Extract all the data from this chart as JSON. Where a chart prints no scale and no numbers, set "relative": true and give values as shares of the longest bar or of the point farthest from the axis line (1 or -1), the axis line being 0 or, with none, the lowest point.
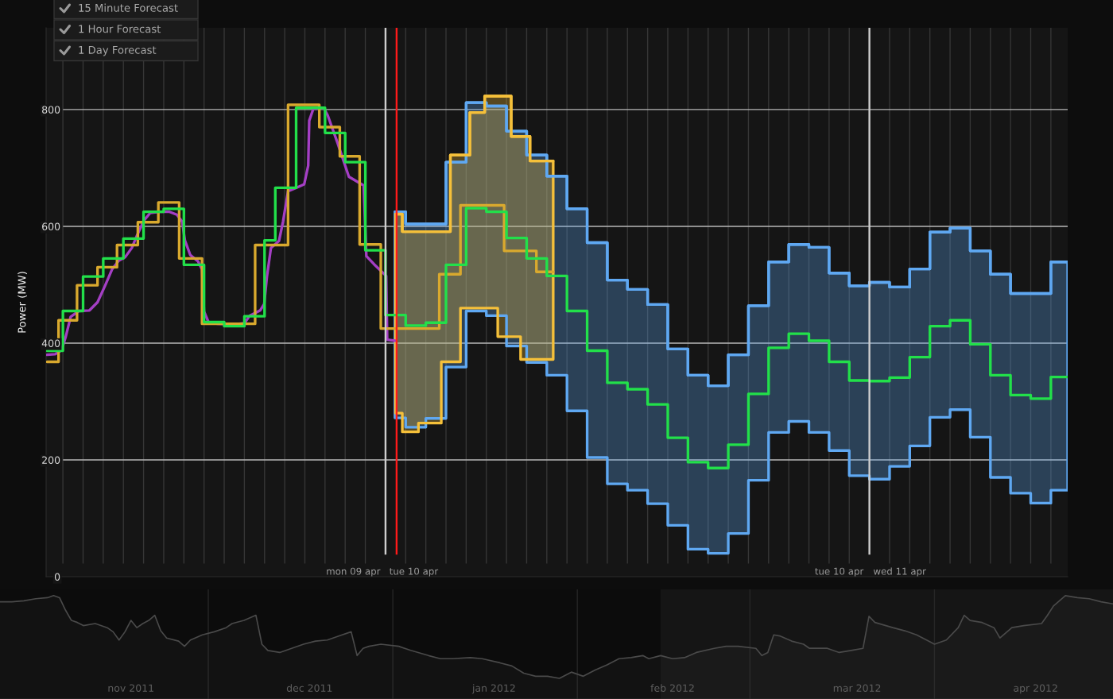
{
  "chart_data": [
    {
      "type": "step",
      "ylabel": "Power (MW)",
      "annotations": [
        "15 Minute Forecast",
        "1 Hour Forecast",
        "1 Day Forecast"
      ],
      "xlim": [
        "2012-04-09T07:10",
        "2012-04-11T09:50"
      ],
      "ylim": [
        0,
        940
      ],
      "yticks": [
        0,
        200,
        400,
        600,
        800
      ],
      "xticks": [
        {
          "value": "2012-04-09T22:24",
          "label": "mon 09 apr"
        },
        {
          "value": "2012-04-10T01:24",
          "label": "tue 10 apr"
        },
        {
          "value": "2012-04-10T22:30",
          "label": "tue 10 apr"
        },
        {
          "value": "2012-04-11T01:30",
          "label": "wed 11 apr"
        },
        {
          "value": "2012-04-09T08:00",
          "label": null
        },
        {
          "value": "2012-04-09T09:00",
          "label": null
        },
        {
          "value": "2012-04-09T10:00",
          "label": null
        },
        {
          "value": "2012-04-09T11:00",
          "label": null
        },
        {
          "value": "2012-04-09T12:00",
          "label": null
        },
        {
          "value": "2012-04-09T13:00",
          "label": null
        },
        {
          "value": "2012-04-09T14:00",
          "label": null
        },
        {
          "value": "2012-04-09T15:00",
          "label": null
        },
        {
          "value": "2012-04-09T16:00",
          "label": null
        },
        {
          "value": "2012-04-09T17:00",
          "label": null
        },
        {
          "value": "2012-04-09T18:00",
          "label": null
        },
        {
          "value": "2012-04-09T19:00",
          "label": null
        },
        {
          "value": "2012-04-09T20:00",
          "label": null
        },
        {
          "value": "2012-04-09T21:00",
          "label": null
        },
        {
          "value": "2012-04-09T22:00",
          "label": null
        },
        {
          "value": "2012-04-09T23:00",
          "label": null
        },
        {
          "value": "2012-04-10T01:00",
          "label": null
        },
        {
          "value": "2012-04-10T02:00",
          "label": null
        },
        {
          "value": "2012-04-10T03:00",
          "label": null
        },
        {
          "value": "2012-04-10T04:00",
          "label": null
        },
        {
          "value": "2012-04-10T05:00",
          "label": null
        },
        {
          "value": "2012-04-10T06:00",
          "label": null
        },
        {
          "value": "2012-04-10T07:00",
          "label": null
        },
        {
          "value": "2012-04-10T08:00",
          "label": null
        },
        {
          "value": "2012-04-10T09:00",
          "label": null
        },
        {
          "value": "2012-04-10T10:00",
          "label": null
        },
        {
          "value": "2012-04-10T11:00",
          "label": null
        },
        {
          "value": "2012-04-10T12:00",
          "label": null
        },
        {
          "value": "2012-04-10T13:00",
          "label": null
        },
        {
          "value": "2012-04-10T14:00",
          "label": null
        },
        {
          "value": "2012-04-10T15:00",
          "label": null
        },
        {
          "value": "2012-04-10T16:00",
          "label": null
        },
        {
          "value": "2012-04-10T17:00",
          "label": null
        },
        {
          "value": "2012-04-10T18:00",
          "label": null
        },
        {
          "value": "2012-04-10T19:00",
          "label": null
        },
        {
          "value": "2012-04-10T20:00",
          "label": null
        },
        {
          "value": "2012-04-10T21:00",
          "label": null
        },
        {
          "value": "2012-04-10T22:00",
          "label": null
        },
        {
          "value": "2012-04-10T23:00",
          "label": null
        },
        {
          "value": "2012-04-11T01:00",
          "label": null
        },
        {
          "value": "2012-04-11T02:00",
          "label": null
        },
        {
          "value": "2012-04-11T03:00",
          "label": null
        },
        {
          "value": "2012-04-11T04:00",
          "label": null
        },
        {
          "value": "2012-04-11T05:00",
          "label": null
        },
        {
          "value": "2012-04-11T06:00",
          "label": null
        },
        {
          "value": "2012-04-11T07:00",
          "label": null
        },
        {
          "value": "2012-04-11T08:00",
          "label": null
        },
        {
          "value": "2012-04-11T09:00",
          "label": null
        }
      ],
      "grid": true,
      "ref_lines": [
        {
          "axis": "x",
          "value": "2012-04-10T00:00",
          "color": "#cfcfcf"
        },
        {
          "axis": "x",
          "value": "2012-04-11T00:00",
          "color": "#cfcfcf"
        },
        {
          "axis": "x",
          "value": "2012-04-10T00:33",
          "color": "#ff1a1a"
        }
      ],
      "series": [
        {
          "type": "step",
          "color": "#5fa8f2",
          "x": [
            "2012-04-10T00:28",
            "2012-04-10T01:00",
            "2012-04-10T02:00",
            "2012-04-10T03:00",
            "2012-04-10T04:00",
            "2012-04-10T05:00",
            "2012-04-10T06:00",
            "2012-04-10T07:00",
            "2012-04-10T08:00",
            "2012-04-10T09:00",
            "2012-04-10T10:00",
            "2012-04-10T11:00",
            "2012-04-10T12:00",
            "2012-04-10T13:00",
            "2012-04-10T14:00",
            "2012-04-10T15:00",
            "2012-04-10T16:00",
            "2012-04-10T17:00",
            "2012-04-10T18:00",
            "2012-04-10T19:00",
            "2012-04-10T20:00",
            "2012-04-10T21:00",
            "2012-04-10T22:00",
            "2012-04-10T23:00",
            "2012-04-11T00:00",
            "2012-04-11T01:00",
            "2012-04-11T02:00",
            "2012-04-11T03:00",
            "2012-04-11T04:00",
            "2012-04-11T05:00",
            "2012-04-11T06:00",
            "2012-04-11T07:00",
            "2012-04-11T08:00",
            "2012-04-11T09:00",
            "2012-04-11T09:50"
          ],
          "values": [
            625,
            604,
            604,
            710,
            812,
            806,
            763,
            722,
            686,
            630,
            572,
            508,
            492,
            466,
            390,
            345,
            327,
            380,
            464,
            539,
            569,
            564,
            520,
            498,
            504,
            496,
            527,
            590,
            597,
            558,
            518,
            485,
            485,
            539,
            539
          ],
          "upper": [
            625,
            604,
            604,
            710,
            812,
            806,
            763,
            722,
            686,
            630,
            572,
            508,
            492,
            466,
            390,
            345,
            327,
            380,
            464,
            539,
            569,
            564,
            520,
            498,
            504,
            496,
            527,
            590,
            597,
            558,
            518,
            485,
            485,
            539,
            539
          ],
          "lower": [
            272,
            256,
            271,
            359,
            455,
            447,
            395,
            367,
            345,
            284,
            204,
            159,
            148,
            125,
            88,
            47,
            40,
            74,
            165,
            247,
            266,
            247,
            216,
            173,
            167,
            189,
            224,
            273,
            286,
            239,
            170,
            143,
            126,
            148,
            148
          ]
        },
        {
          "type": "step",
          "color": "#f5c03a",
          "x": [
            "2012-04-10T00:30",
            "2012-04-10T00:50",
            "2012-04-10T01:38",
            "2012-04-10T02:46",
            "2012-04-10T03:13",
            "2012-04-10T03:43",
            "2012-04-10T04:11",
            "2012-04-10T04:55",
            "2012-04-10T05:34",
            "2012-04-10T06:14",
            "2012-04-10T06:42",
            "2012-04-10T07:10",
            "2012-04-10T08:19"
          ],
          "values": [
            621,
            591,
            591,
            591,
            722,
            722,
            795,
            823,
            823,
            754,
            754,
            712,
            712
          ],
          "upper": [
            621,
            591,
            591,
            591,
            722,
            722,
            795,
            823,
            823,
            754,
            754,
            712,
            712
          ],
          "lower": [
            280,
            248,
            263,
            368,
            368,
            460,
            460,
            460,
            411,
            411,
            372,
            372,
            372
          ]
        },
        {
          "type": "line",
          "color": "#a43fc4",
          "x": [
            "2012-04-09T07:13",
            "2012-04-09T07:37",
            "2012-04-09T07:56",
            "2012-04-09T08:08",
            "2012-04-09T08:23",
            "2012-04-09T08:47",
            "2012-04-09T09:19",
            "2012-04-09T09:43",
            "2012-04-09T10:06",
            "2012-04-09T10:26",
            "2012-04-09T10:46",
            "2012-04-09T11:05",
            "2012-04-09T11:25",
            "2012-04-09T11:41",
            "2012-04-09T12:01",
            "2012-04-09T12:20",
            "2012-04-09T12:48",
            "2012-04-09T13:16",
            "2012-04-09T13:39",
            "2012-04-09T13:55",
            "2012-04-09T14:03",
            "2012-04-09T14:19",
            "2012-04-09T14:42",
            "2012-04-09T14:54",
            "2012-04-09T15:00",
            "2012-04-09T15:14",
            "2012-04-09T15:41",
            "2012-04-09T16:29",
            "2012-04-09T17:00",
            "2012-04-09T17:16",
            "2012-04-09T17:47",
            "2012-04-09T17:59",
            "2012-04-09T18:07",
            "2012-04-09T18:19",
            "2012-04-09T18:43",
            "2012-04-09T18:55",
            "2012-04-09T19:10",
            "2012-04-09T19:30",
            "2012-04-09T19:58",
            "2012-04-09T20:10",
            "2012-04-09T20:13",
            "2012-04-09T20:25",
            "2012-04-09T20:56",
            "2012-04-09T21:08",
            "2012-04-09T21:36",
            "2012-04-09T22:11",
            "2012-04-09T22:55",
            "2012-04-09T23:03",
            "2012-04-09T23:26",
            "2012-04-10T00:02",
            "2012-04-10T00:05",
            "2012-04-10T00:29"
          ],
          "values": [
            380,
            381,
            388,
            410,
            445,
            455,
            456,
            470,
            499,
            526,
            541,
            547,
            563,
            585,
            610,
            623,
            625,
            625,
            620,
            608,
            576,
            551,
            540,
            526,
            454,
            435,
            433,
            432,
            434,
            447,
            456,
            467,
            513,
            563,
            575,
            608,
            660,
            665,
            672,
            704,
            781,
            801,
            803,
            790,
            745,
            685,
            670,
            549,
            535,
            515,
            406,
            404
          ]
        },
        {
          "type": "step",
          "color": "#d9a92e",
          "x": [
            "2012-04-09T07:13",
            "2012-04-09T07:47",
            "2012-04-09T08:42",
            "2012-04-09T09:43",
            "2012-04-09T10:41",
            "2012-04-09T11:43",
            "2012-04-09T12:44",
            "2012-04-09T13:46",
            "2012-04-09T14:54",
            "2012-04-09T17:32",
            "2012-04-09T19:10",
            "2012-04-09T20:43",
            "2012-04-09T21:44",
            "2012-04-09T22:43",
            "2012-04-09T23:46",
            "2012-04-10T02:40",
            "2012-04-10T03:43",
            "2012-04-10T05:53",
            "2012-04-10T07:29",
            "2012-04-10T08:19"
          ],
          "values": [
            368,
            439,
            499,
            530,
            568,
            607,
            641,
            545,
            433,
            568,
            808,
            770,
            720,
            569,
            425,
            518,
            636,
            558,
            522,
            522
          ]
        },
        {
          "type": "step",
          "color": "#22e04a",
          "x": [
            "2012-04-09T07:13",
            "2012-04-09T08:00",
            "2012-04-09T09:00",
            "2012-04-09T10:00",
            "2012-04-09T11:00",
            "2012-04-09T12:00",
            "2012-04-09T13:00",
            "2012-04-09T14:00",
            "2012-04-09T15:00",
            "2012-04-09T16:00",
            "2012-04-09T17:00",
            "2012-04-09T18:00",
            "2012-04-09T18:32",
            "2012-04-09T19:34",
            "2012-04-09T21:00",
            "2012-04-09T22:00",
            "2012-04-09T23:00",
            "2012-04-10T00:00",
            "2012-04-10T01:00",
            "2012-04-10T02:00",
            "2012-04-10T03:00",
            "2012-04-10T04:00",
            "2012-04-10T05:00",
            "2012-04-10T06:00",
            "2012-04-10T07:00",
            "2012-04-10T08:00",
            "2012-04-10T09:00",
            "2012-04-10T10:00",
            "2012-04-10T11:00",
            "2012-04-10T12:00",
            "2012-04-10T13:00",
            "2012-04-10T14:00",
            "2012-04-10T15:00",
            "2012-04-10T16:00",
            "2012-04-10T17:00",
            "2012-04-10T18:00",
            "2012-04-10T19:00",
            "2012-04-10T20:00",
            "2012-04-10T21:00",
            "2012-04-10T22:00",
            "2012-04-10T23:00",
            "2012-04-11T00:00",
            "2012-04-11T01:00",
            "2012-04-11T02:00",
            "2012-04-11T03:00",
            "2012-04-11T04:00",
            "2012-04-11T05:00",
            "2012-04-11T06:00",
            "2012-04-11T07:00",
            "2012-04-11T08:00",
            "2012-04-11T09:00",
            "2012-04-11T09:50"
          ],
          "values": [
            387,
            455,
            514,
            545,
            579,
            625,
            630,
            534,
            436,
            429,
            446,
            576,
            666,
            803,
            760,
            710,
            559,
            448,
            430,
            435,
            534,
            631,
            625,
            580,
            545,
            515,
            455,
            387,
            332,
            321,
            295,
            238,
            196,
            186,
            226,
            313,
            392,
            416,
            404,
            368,
            336,
            335,
            341,
            376,
            429,
            439,
            398,
            345,
            311,
            305,
            342,
            342
          ]
        }
      ]
    },
    {
      "type": "area",
      "relative": true,
      "color": "#4a4a4a",
      "x": [
        "2011-10-27",
        "2011-10-29",
        "2011-10-31",
        "2011-11-02",
        "2011-11-04",
        "2011-11-05",
        "2011-11-06",
        "2011-11-07",
        "2011-11-08",
        "2011-11-09",
        "2011-11-10",
        "2011-11-12",
        "2011-11-14",
        "2011-11-15",
        "2011-11-16",
        "2011-11-17",
        "2011-11-18",
        "2011-11-19",
        "2011-11-20",
        "2011-11-21",
        "2011-11-22",
        "2011-11-23",
        "2011-11-24",
        "2011-11-26",
        "2011-11-27",
        "2011-11-28",
        "2011-11-30",
        "2011-12-02",
        "2011-12-04",
        "2011-12-05",
        "2011-12-07",
        "2011-12-09",
        "2011-12-10",
        "2011-12-11",
        "2011-12-13",
        "2011-12-15",
        "2011-12-17",
        "2011-12-19",
        "2011-12-21",
        "2011-12-23",
        "2011-12-25",
        "2011-12-26",
        "2011-12-27",
        "2011-12-28",
        "2011-12-30",
        "2012-01-02",
        "2012-01-04",
        "2012-01-07",
        "2012-01-09",
        "2012-01-11",
        "2012-01-14",
        "2012-01-16",
        "2012-01-19",
        "2012-01-21",
        "2012-01-23",
        "2012-01-25",
        "2012-01-27",
        "2012-01-29",
        "2012-01-31",
        "2012-02-02",
        "2012-02-04",
        "2012-02-06",
        "2012-02-08",
        "2012-02-10",
        "2012-02-12",
        "2012-02-13",
        "2012-02-15",
        "2012-02-17",
        "2012-02-19",
        "2012-02-21",
        "2012-02-24",
        "2012-02-26",
        "2012-02-28",
        "2012-03-02",
        "2012-03-03",
        "2012-03-04",
        "2012-03-05",
        "2012-03-06",
        "2012-03-08",
        "2012-03-10",
        "2012-03-11",
        "2012-03-14",
        "2012-03-16",
        "2012-03-18",
        "2012-03-20",
        "2012-03-21",
        "2012-03-22",
        "2012-03-25",
        "2012-03-27",
        "2012-03-29",
        "2012-03-31",
        "2012-04-01",
        "2012-04-03",
        "2012-04-05",
        "2012-04-06",
        "2012-04-07",
        "2012-04-09",
        "2012-04-11",
        "2012-04-12",
        "2012-04-14",
        "2012-04-16",
        "2012-04-19",
        "2012-04-20",
        "2012-04-21",
        "2012-04-23",
        "2012-04-25",
        "2012-04-27",
        "2012-04-29",
        "2012-05-01"
      ],
      "values": [
        0.94,
        0.94,
        0.95,
        0.97,
        0.98,
        1.0,
        0.98,
        0.86,
        0.76,
        0.74,
        0.71,
        0.73,
        0.69,
        0.65,
        0.57,
        0.65,
        0.76,
        0.69,
        0.73,
        0.76,
        0.81,
        0.66,
        0.59,
        0.56,
        0.51,
        0.57,
        0.62,
        0.65,
        0.69,
        0.73,
        0.76,
        0.81,
        0.53,
        0.47,
        0.45,
        0.49,
        0.53,
        0.56,
        0.57,
        0.61,
        0.65,
        0.42,
        0.49,
        0.51,
        0.53,
        0.51,
        0.47,
        0.42,
        0.39,
        0.39,
        0.4,
        0.39,
        0.35,
        0.32,
        0.25,
        0.22,
        0.22,
        0.2,
        0.26,
        0.22,
        0.28,
        0.33,
        0.39,
        0.4,
        0.42,
        0.39,
        0.42,
        0.39,
        0.4,
        0.45,
        0.49,
        0.51,
        0.51,
        0.49,
        0.42,
        0.45,
        0.62,
        0.61,
        0.56,
        0.53,
        0.49,
        0.49,
        0.45,
        0.47,
        0.49,
        0.8,
        0.74,
        0.69,
        0.66,
        0.62,
        0.56,
        0.53,
        0.57,
        0.69,
        0.81,
        0.76,
        0.74,
        0.69,
        0.59,
        0.69,
        0.71,
        0.73,
        0.81,
        0.9,
        1.0,
        0.98,
        0.97,
        0.94,
        0.92
      ],
      "xlim": [
        "2011-10-27",
        "2012-05-01"
      ],
      "xticks": [
        {
          "value": "2011-11-18",
          "label": "nov 2011"
        },
        {
          "value": "2011-12-18",
          "label": "dec 2011"
        },
        {
          "value": "2012-01-18",
          "label": "jan 2012"
        },
        {
          "value": "2012-02-17",
          "label": "feb 2012"
        },
        {
          "value": "2012-03-19",
          "label": "mar 2012"
        },
        {
          "value": "2012-04-18",
          "label": "apr 2012"
        },
        {
          "value": "2011-12-01",
          "label": null
        },
        {
          "value": "2012-01-01",
          "label": null
        },
        {
          "value": "2012-02-01",
          "label": null
        },
        {
          "value": "2012-03-01",
          "label": null
        },
        {
          "value": "2012-04-01",
          "label": null
        }
      ],
      "grid": "x",
      "bands": [
        {
          "axis": "x",
          "from": "2012-02-15",
          "to": "2012-05-01",
          "color": "#151515"
        }
      ]
    }
  ]
}
